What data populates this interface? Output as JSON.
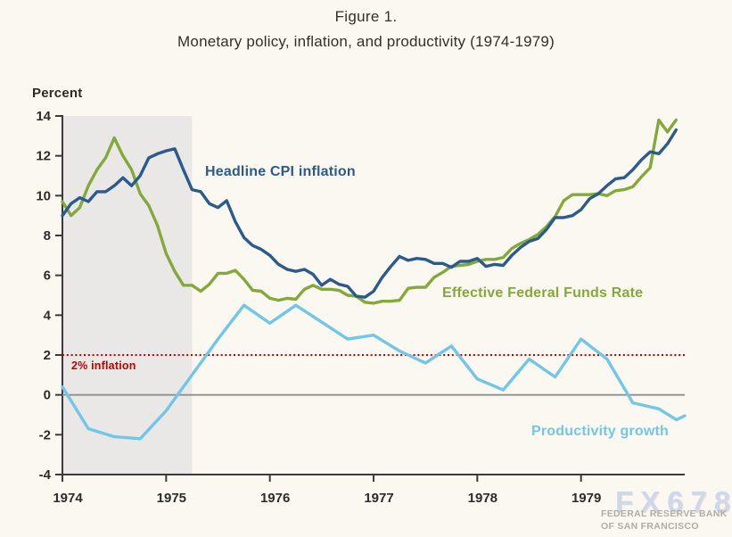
{
  "chart_data": {
    "type": "line",
    "title": "Figure 1.",
    "subtitle": "Monetary policy, inflation, and productivity (1974-1979)",
    "ylabel": "Percent",
    "xlabel": "",
    "ylim": [
      -4,
      14
    ],
    "xlim": [
      1974,
      1980
    ],
    "yticks": [
      14,
      12,
      10,
      8,
      6,
      4,
      2,
      0,
      -2,
      -4
    ],
    "xticks": [
      1974,
      1975,
      1976,
      1977,
      1978,
      1979
    ],
    "grid": false,
    "legend_position": "inline-labels",
    "axis_color": "#3a3a3a",
    "tick_label_color": "#2c2c2c",
    "recession_band": {
      "from": 1974.0,
      "to": 1975.25,
      "color": "#e9e8e6"
    },
    "zero_line": {
      "value": 0,
      "color": "#8f8f8f"
    },
    "annotations": {
      "target_label": "2% inflation",
      "target_value": 2,
      "color": "#c00000",
      "style": "dotted"
    },
    "series": [
      {
        "name": "Headline CPI inflation",
        "color": "#2a5b8c",
        "x_start": 1974.0,
        "x_step": 0.083333,
        "values": [
          9.0,
          9.6,
          9.9,
          9.7,
          10.2,
          10.2,
          10.5,
          10.9,
          10.5,
          11.0,
          11.9,
          12.1,
          12.25,
          12.35,
          11.3,
          10.3,
          10.2,
          9.6,
          9.4,
          9.75,
          8.7,
          7.9,
          7.5,
          7.3,
          7.0,
          6.55,
          6.3,
          6.2,
          6.3,
          6.05,
          5.5,
          5.8,
          5.55,
          5.45,
          4.95,
          4.9,
          5.2,
          5.9,
          6.45,
          6.95,
          6.75,
          6.85,
          6.8,
          6.6,
          6.6,
          6.4,
          6.7,
          6.7,
          6.85,
          6.45,
          6.55,
          6.5,
          7.0,
          7.4,
          7.7,
          7.85,
          8.3,
          8.9,
          8.9,
          9.0,
          9.3,
          9.85,
          10.1,
          10.5,
          10.85,
          10.9,
          11.3,
          11.8,
          12.2,
          12.1,
          12.6,
          13.3
        ]
      },
      {
        "name": "Effective Federal Funds Rate",
        "color": "#84a93b",
        "x_start": 1974.0,
        "x_step": 0.083333,
        "values": [
          9.7,
          9.0,
          9.4,
          10.5,
          11.3,
          11.9,
          12.9,
          12.0,
          11.3,
          10.1,
          9.5,
          8.5,
          7.1,
          6.2,
          5.5,
          5.5,
          5.2,
          5.55,
          6.1,
          6.1,
          6.25,
          5.8,
          5.25,
          5.2,
          4.85,
          4.75,
          4.85,
          4.8,
          5.3,
          5.5,
          5.3,
          5.3,
          5.25,
          5.0,
          4.95,
          4.65,
          4.6,
          4.7,
          4.7,
          4.75,
          5.35,
          5.4,
          5.4,
          5.9,
          6.15,
          6.45,
          6.5,
          6.55,
          6.7,
          6.8,
          6.8,
          6.9,
          7.35,
          7.6,
          7.8,
          8.05,
          8.45,
          8.95,
          9.75,
          10.05,
          10.05,
          10.05,
          10.1,
          10.0,
          10.25,
          10.3,
          10.45,
          10.95,
          11.4,
          13.8,
          13.2,
          13.8
        ]
      },
      {
        "name": "Productivity growth",
        "color": "#72c6e6",
        "points": [
          [
            1974.0,
            0.4
          ],
          [
            1974.25,
            -1.7
          ],
          [
            1974.5,
            -2.1
          ],
          [
            1974.75,
            -2.2
          ],
          [
            1975.0,
            -0.8
          ],
          [
            1975.25,
            1.0
          ],
          [
            1975.5,
            2.8
          ],
          [
            1975.75,
            4.5
          ],
          [
            1976.0,
            3.6
          ],
          [
            1976.25,
            4.5
          ],
          [
            1976.5,
            3.65
          ],
          [
            1976.75,
            2.8
          ],
          [
            1977.0,
            3.0
          ],
          [
            1977.25,
            2.2
          ],
          [
            1977.5,
            1.6
          ],
          [
            1977.75,
            2.45
          ],
          [
            1978.0,
            0.8
          ],
          [
            1978.25,
            0.25
          ],
          [
            1978.5,
            1.8
          ],
          [
            1978.75,
            0.9
          ],
          [
            1979.0,
            2.8
          ],
          [
            1979.25,
            1.8
          ],
          [
            1979.5,
            -0.4
          ],
          [
            1979.75,
            -0.7
          ],
          [
            1979.92,
            -1.25
          ],
          [
            1980.0,
            -1.05
          ]
        ]
      }
    ]
  },
  "watermark": {
    "logo": "FX678",
    "logo_color": "#cdd9ea",
    "bank_line1": "FEDERAL RESERVE BANK",
    "bank_line2": "OF SAN FRANCISCO",
    "bank_color": "#b2aca6"
  }
}
